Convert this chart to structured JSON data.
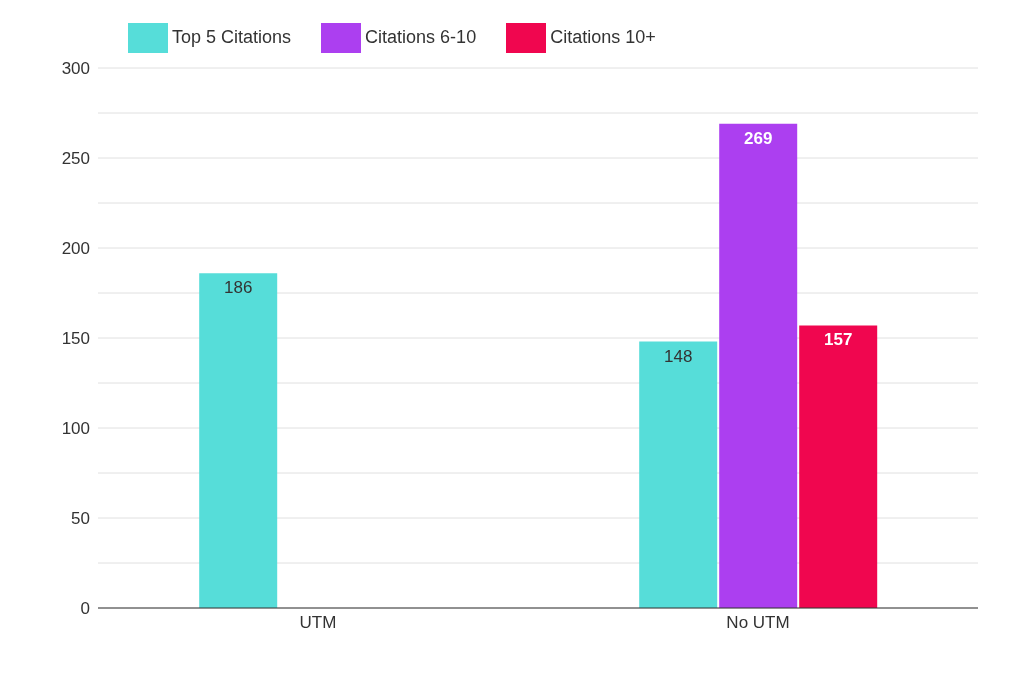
{
  "chart_data": {
    "type": "bar",
    "categories": [
      "UTM",
      "No UTM"
    ],
    "series": [
      {
        "name": "Top 5 Citations",
        "color": "#56ddd9",
        "values": [
          186,
          148
        ]
      },
      {
        "name": "Citations 6-10",
        "color": "#ac3ff0",
        "values": [
          null,
          269
        ]
      },
      {
        "name": "Citations 10+",
        "color": "#f0064f",
        "values": [
          null,
          157
        ]
      }
    ],
    "ylim": [
      0,
      300
    ],
    "yticks": [
      0,
      {
        "value": 25,
        "label": null
      },
      50,
      {
        "value": 75,
        "label": null
      },
      100,
      {
        "value": 125,
        "label": null
      },
      150,
      {
        "value": 175,
        "label": null
      },
      200,
      {
        "value": 225,
        "label": null
      },
      250,
      {
        "value": 275,
        "label": null
      },
      300
    ],
    "grid": "y",
    "legend": "top left",
    "data_labels": true
  }
}
